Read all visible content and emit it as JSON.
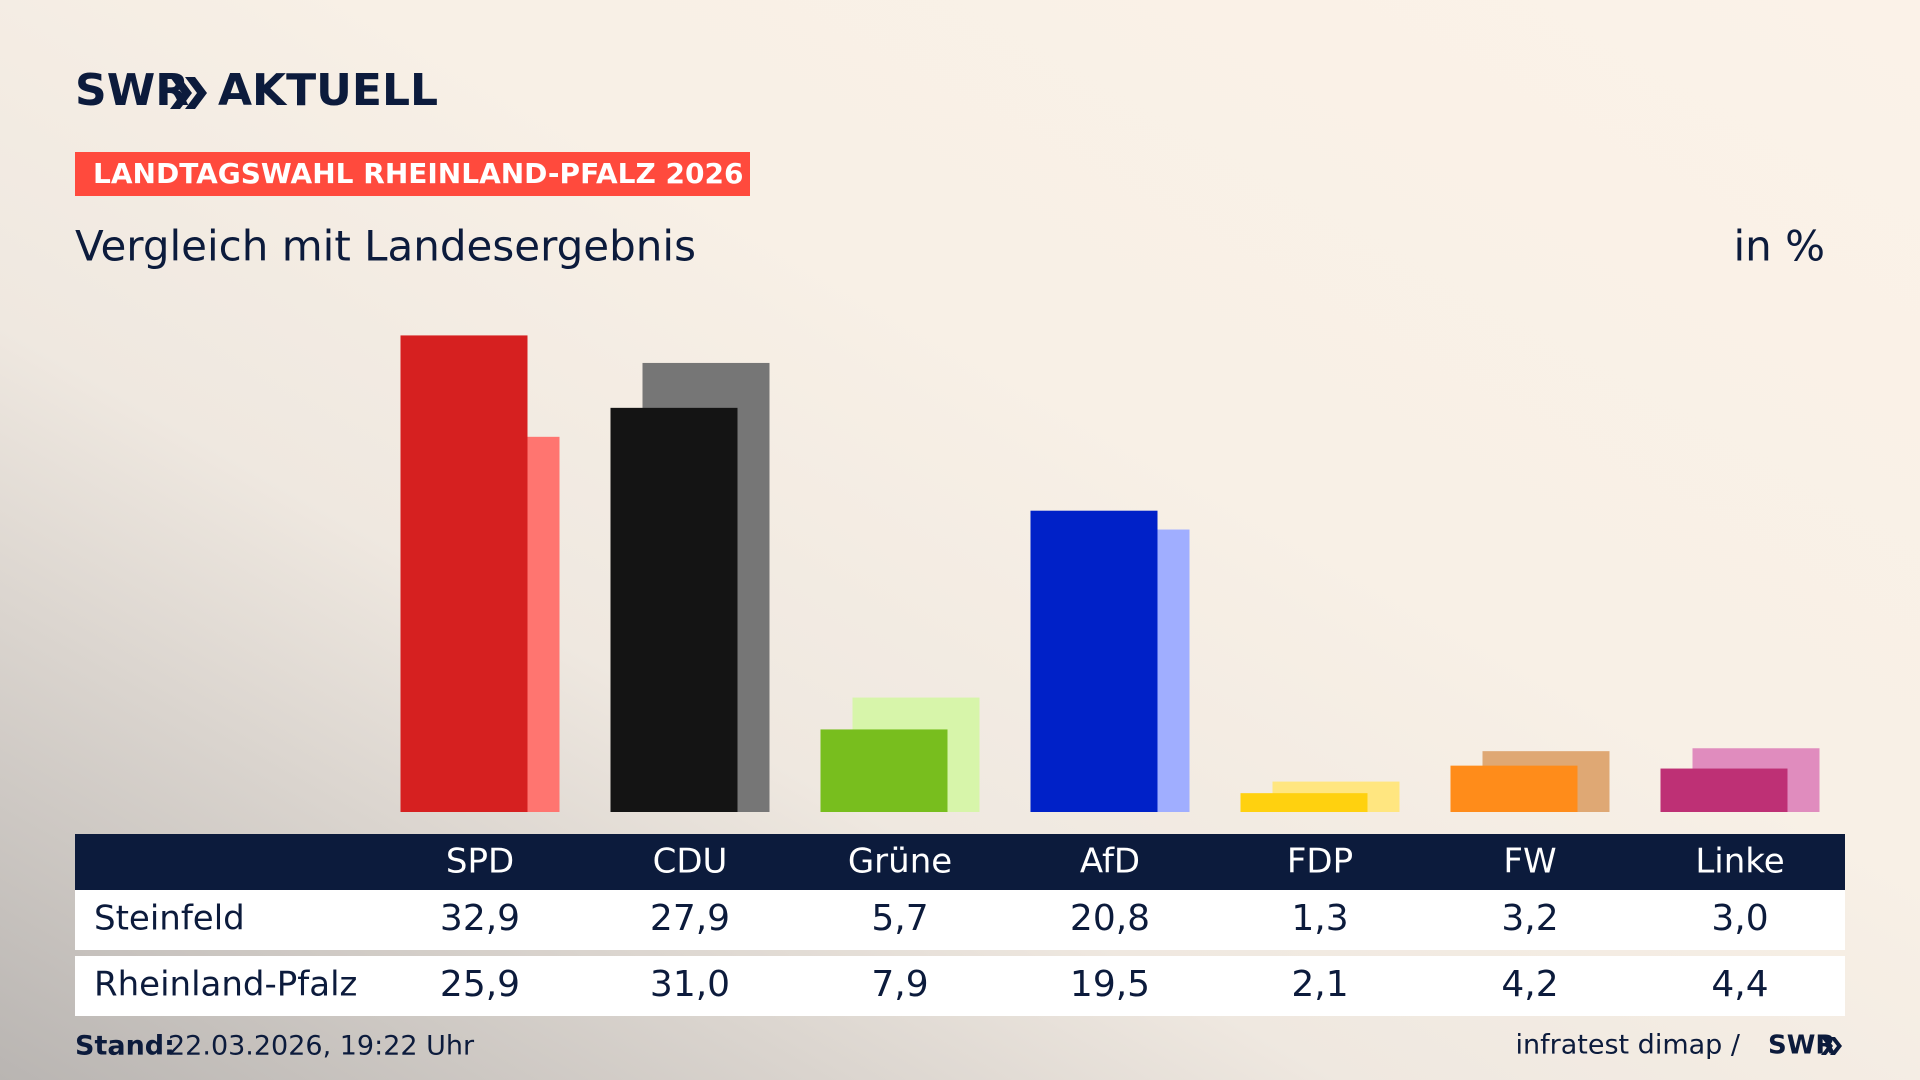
{
  "chart_data": {
    "type": "bar",
    "brand": "SWR",
    "brand_product": "AKTUELL",
    "kicker": "LANDTAGSWAHL RHEINLAND-PFALZ 2026",
    "title": "Vergleich mit Landesergebnis",
    "unit": "in %",
    "categories": [
      "SPD",
      "CDU",
      "Grüne",
      "AfD",
      "FDP",
      "FW",
      "Linke"
    ],
    "series": [
      {
        "name": "Steinfeld",
        "colors": [
          "#d62020",
          "#141414",
          "#78be1e",
          "#0021c8",
          "#ffd10f",
          "#ff8c1a",
          "#be3075"
        ],
        "values": [
          32.9,
          27.9,
          5.7,
          20.8,
          1.3,
          3.2,
          3.0
        ],
        "value_labels": [
          "32,9",
          "27,9",
          "5,7",
          "20,8",
          "1,3",
          "3,2",
          "3,0"
        ]
      },
      {
        "name": "Rheinland-Pfalz",
        "colors": [
          "#ff7570",
          "#767676",
          "#d7f5aa",
          "#a0aeff",
          "#ffe680",
          "#dfa874",
          "#e08cbe"
        ],
        "values": [
          25.9,
          31.0,
          7.9,
          19.5,
          2.1,
          4.2,
          4.4
        ],
        "value_labels": [
          "25,9",
          "31,0",
          "7,9",
          "19,5",
          "2,1",
          "4,2",
          "4,4"
        ]
      }
    ],
    "ylim": [
      0,
      35
    ],
    "stand_label": "Stand:",
    "stand": "22.03.2026, 19:22 Uhr",
    "source": "infratest dimap /",
    "source_brand": "SWR"
  }
}
